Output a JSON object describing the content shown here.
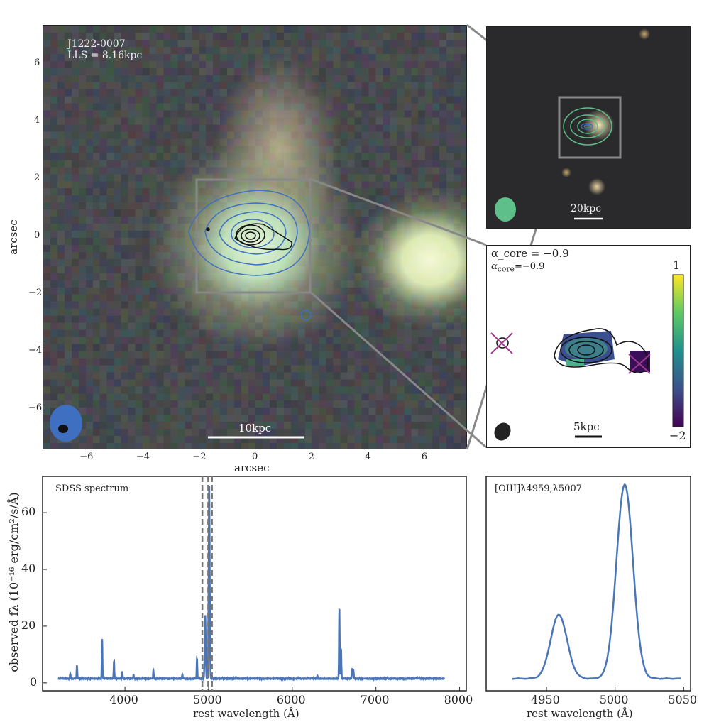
{
  "chart_data": [
    {
      "type": "image",
      "panel": "main-image",
      "label": "J1222-0007",
      "lls": "LLS = 8.16kpc",
      "xlabel": "arcsec",
      "ylabel": "arcsec",
      "xlim": [
        -7.5,
        7.5
      ],
      "ylim": [
        -7.5,
        7.5
      ],
      "xticks": [
        "−6",
        "−4",
        "−2",
        "0",
        "2",
        "4",
        "6"
      ],
      "yticks": [
        "6",
        "4",
        "2",
        "0",
        "−2",
        "−4",
        "−6"
      ],
      "scalebar": "10kpc"
    },
    {
      "type": "image",
      "panel": "wide-image",
      "scalebar": "20kpc"
    },
    {
      "type": "heatmap",
      "panel": "spectral-index-map",
      "annotation": "α_core = −0.9",
      "alpha_label": "α",
      "alpha_sub": "core",
      "alpha_value": "=−0.9",
      "colorbar_max": "1",
      "colorbar_min": "−2",
      "colorbar_range": [
        -2,
        1
      ],
      "scalebar": "5kpc"
    },
    {
      "type": "line",
      "panel": "sdss-spectrum",
      "title": "SDSS spectrum",
      "xlabel": "rest wavelength (Å)",
      "ylabel": "observed fλ (10⁻¹⁶ erg/cm²/s/Å)",
      "xlim": [
        3015,
        8080
      ],
      "ylim": [
        -2.8,
        72.8
      ],
      "xticks": [
        4000,
        5000,
        6000,
        7000,
        8000
      ],
      "yticks": [
        0,
        20,
        40,
        60
      ],
      "x_range": [
        3200,
        7820
      ],
      "continuum": 1.5,
      "dashed_lines": [
        4925,
        4995,
        5040
      ],
      "lines": [
        {
          "x": 3346,
          "peak": 3.3
        },
        {
          "x": 3426,
          "peak": 6.2
        },
        {
          "x": 3727,
          "peak": 15.5
        },
        {
          "x": 3869,
          "peak": 7.7
        },
        {
          "x": 3968,
          "peak": 4
        },
        {
          "x": 4102,
          "peak": 2.8
        },
        {
          "x": 4340,
          "peak": 4.3
        },
        {
          "x": 4686,
          "peak": 3
        },
        {
          "x": 4861,
          "peak": 8.6
        },
        {
          "x": 4959,
          "peak": 24
        },
        {
          "x": 5007,
          "peak": 70
        },
        {
          "x": 6300,
          "peak": 2.6
        },
        {
          "x": 6563,
          "peak": 26.5
        },
        {
          "x": 6583,
          "peak": 12
        },
        {
          "x": 6716,
          "peak": 5
        },
        {
          "x": 6731,
          "peak": 4.2
        },
        {
          "x": 7135,
          "peak": 2
        }
      ]
    },
    {
      "type": "line",
      "panel": "oiii-zoom",
      "title": "[OIII]λ4959,λ5007",
      "xlabel": "rest wavelength (Å)",
      "xlim": [
        4906,
        5055
      ],
      "ylim": [
        -2.8,
        72.8
      ],
      "xticks": [
        4950,
        5000,
        5050
      ],
      "x_range": [
        4925,
        5048
      ]
    }
  ],
  "colors": {
    "spectrum": "#4a76b8",
    "contour_blue": "#3f6fc0",
    "contour_green": "#5fbf8a",
    "cross": "#a03a8c"
  }
}
